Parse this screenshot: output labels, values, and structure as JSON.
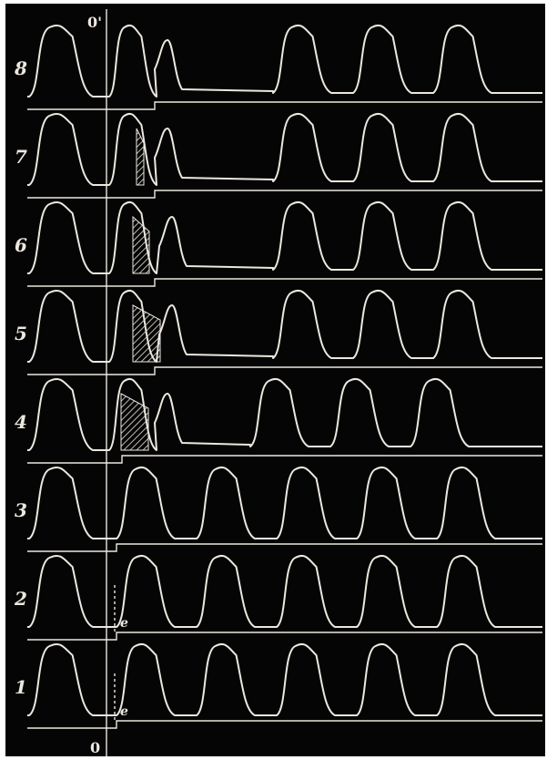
{
  "figure": {
    "top_marker": "0'",
    "bottom_marker": "0",
    "colors": {
      "background": "#050505",
      "trace": "#ece8e0",
      "hatch": "#ece8e0",
      "plate_border": "#ffffff"
    }
  },
  "rows": [
    {
      "label": "8",
      "extra_beat_phase": "late",
      "hatch": "none",
      "stimulus_label": ""
    },
    {
      "label": "7",
      "extra_beat_phase": "late",
      "hatch": "small",
      "stimulus_label": ""
    },
    {
      "label": "6",
      "extra_beat_phase": "mid",
      "hatch": "medium",
      "stimulus_label": ""
    },
    {
      "label": "5",
      "extra_beat_phase": "mid",
      "hatch": "large",
      "stimulus_label": ""
    },
    {
      "label": "4",
      "extra_beat_phase": "early",
      "hatch": "large",
      "stimulus_label": ""
    },
    {
      "label": "3",
      "extra_beat_phase": "none",
      "hatch": "none",
      "stimulus_label": ""
    },
    {
      "label": "2",
      "extra_beat_phase": "none",
      "hatch": "none",
      "stimulus_label": "e"
    },
    {
      "label": "1",
      "extra_beat_phase": "none",
      "hatch": "none",
      "stimulus_label": "e"
    }
  ]
}
